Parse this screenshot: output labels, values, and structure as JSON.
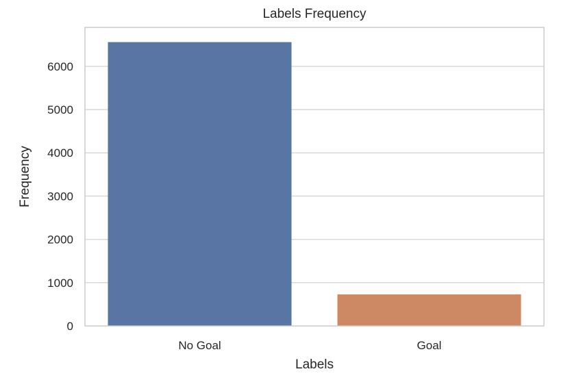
{
  "chart_data": {
    "type": "bar",
    "title": "Labels Frequency",
    "xlabel": "Labels",
    "ylabel": "Frequency",
    "categories": [
      "No Goal",
      "Goal"
    ],
    "values": [
      6560,
      730
    ],
    "colors": [
      "#5975a4",
      "#cc8963"
    ],
    "ylim": [
      0,
      6900
    ],
    "yticks": [
      0,
      1000,
      2000,
      3000,
      4000,
      5000,
      6000
    ],
    "ytick_labels": [
      "0",
      "1000",
      "2000",
      "3000",
      "4000",
      "5000",
      "6000"
    ],
    "grid": true,
    "legend": "none"
  }
}
